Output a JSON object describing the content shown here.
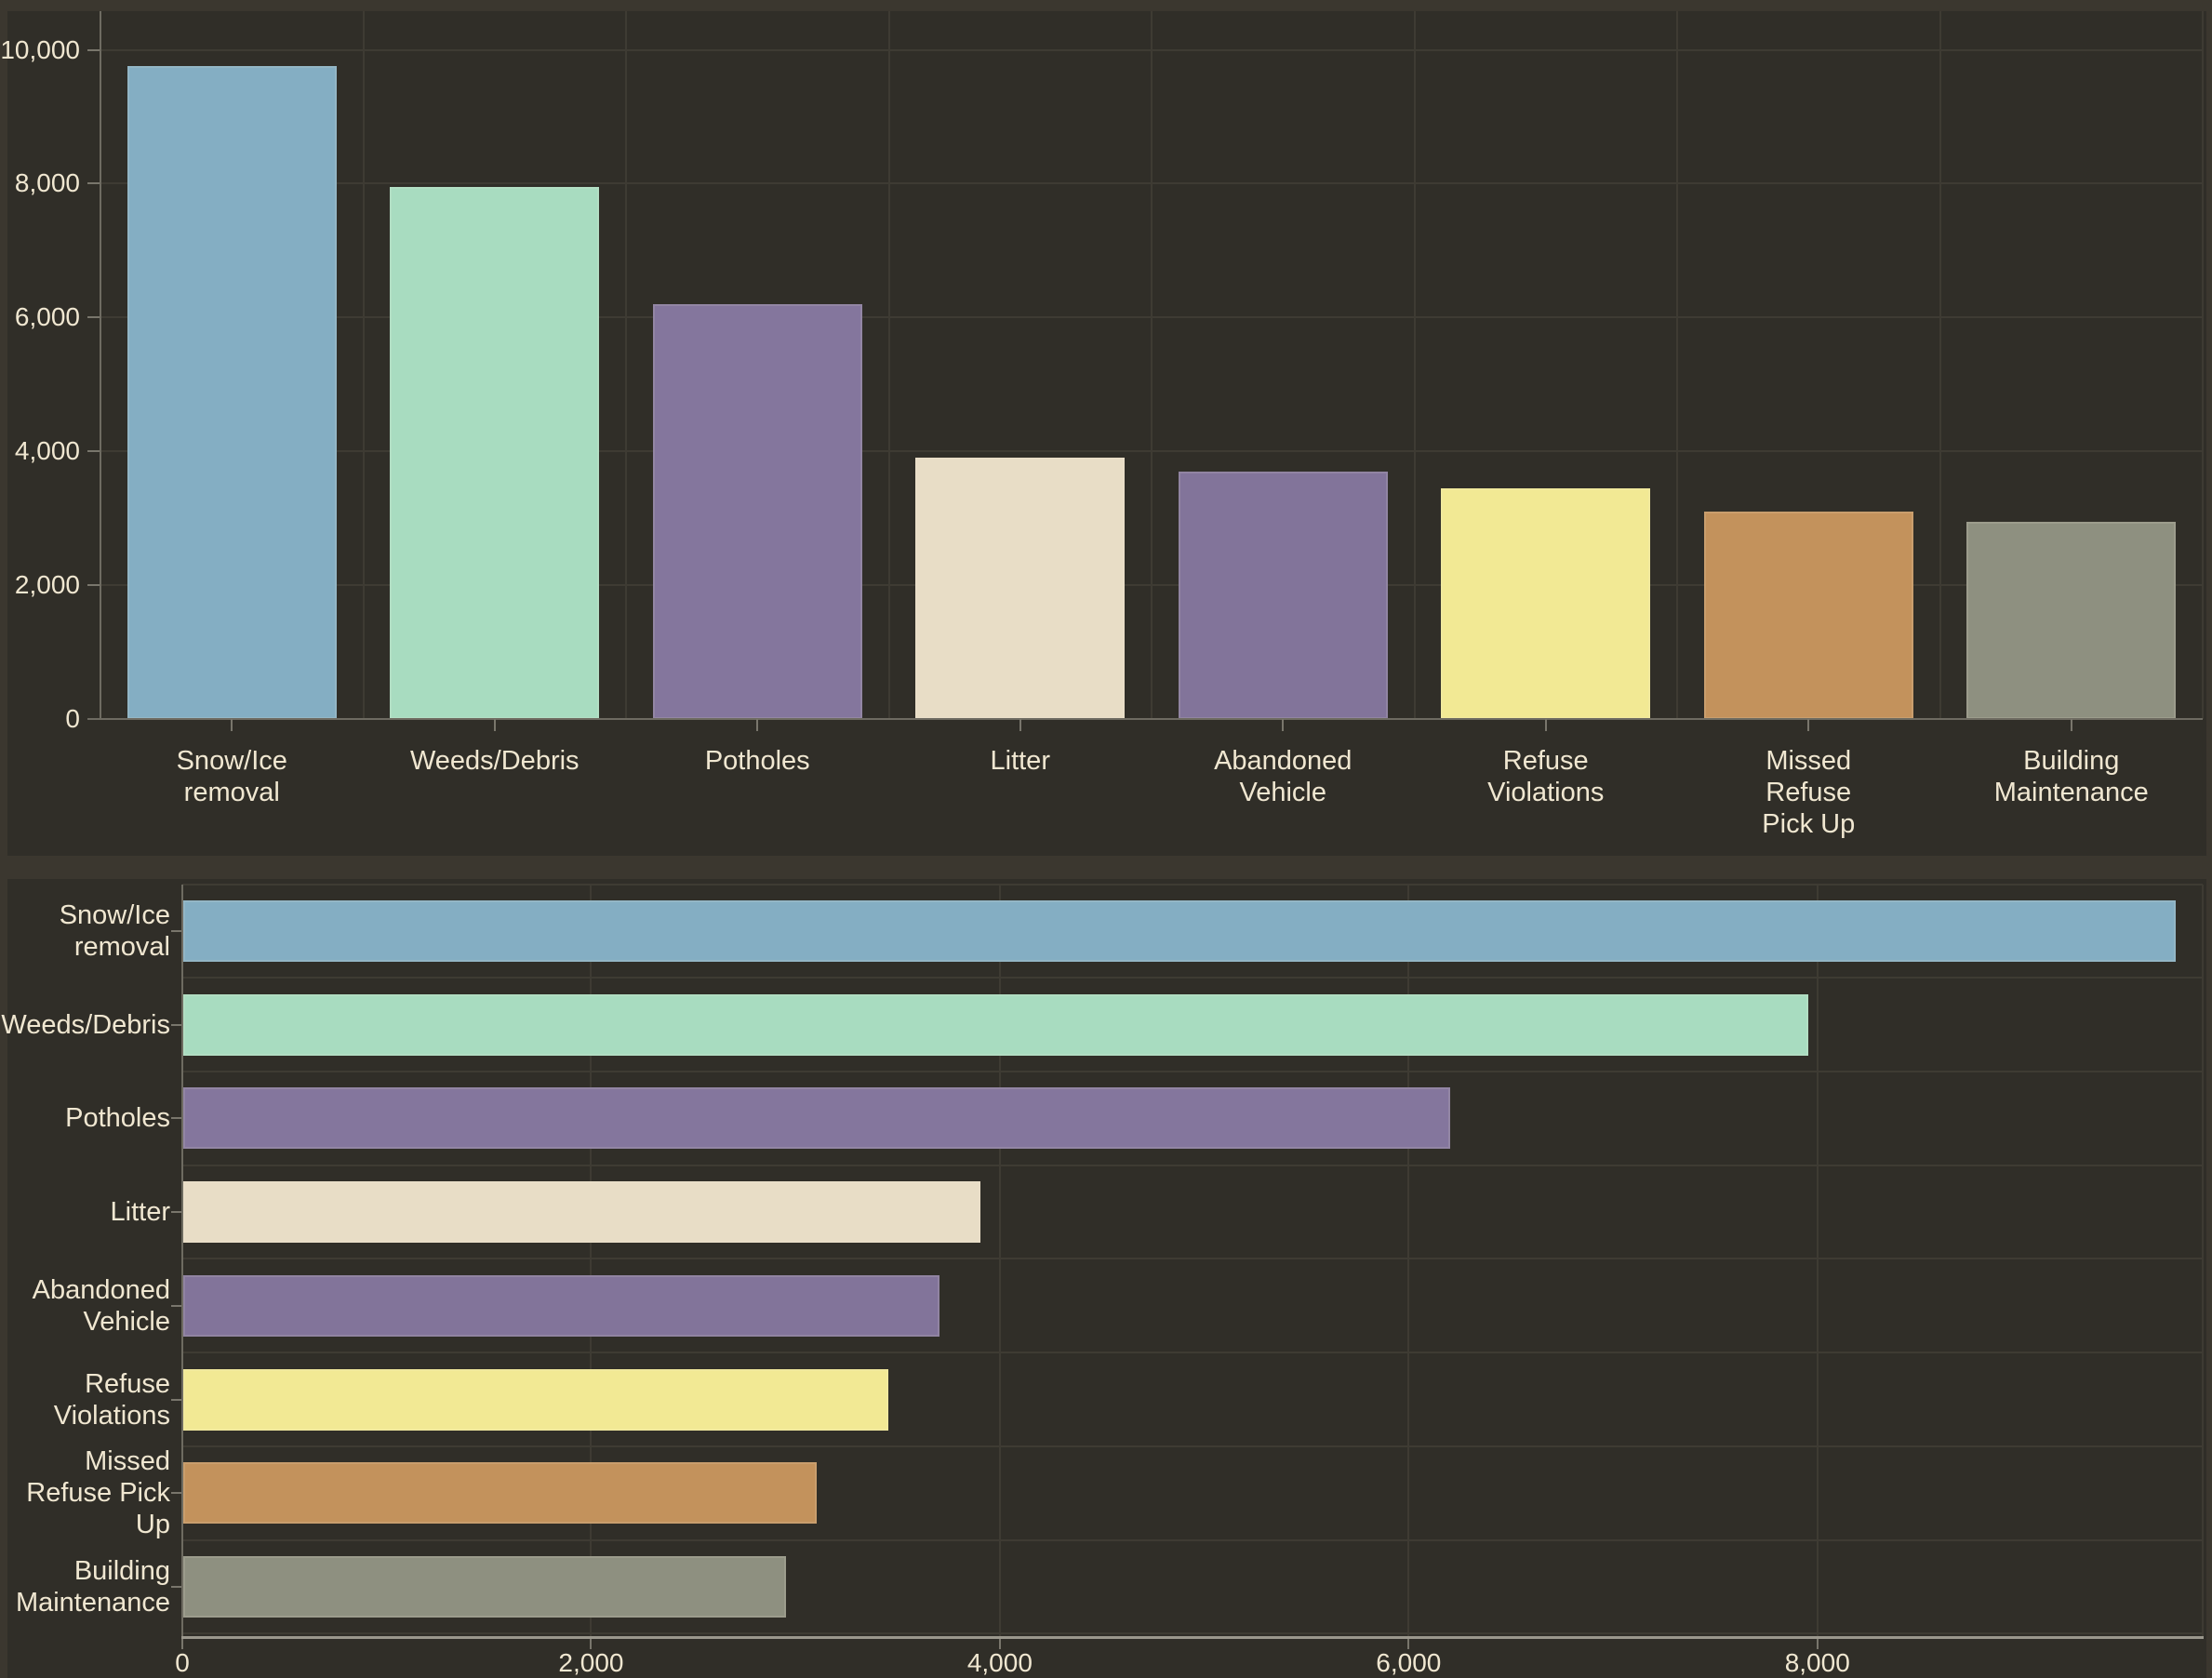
{
  "palette": {
    "page_background": "#3b372f",
    "plot_background": "#302e28",
    "gridline": "#3e3b33",
    "axis_line": "#6e6b61",
    "bottom_axis_line": "#9a978c",
    "label_color": "#f0e7d1"
  },
  "chart_data": [
    {
      "type": "bar",
      "orientation": "vertical",
      "categories": [
        "Snow/Ice removal",
        "Weeds/Debris",
        "Potholes",
        "Litter",
        "Abandoned Vehicle",
        "Refuse Violations",
        "Missed Refuse Pick Up",
        "Building Maintenance"
      ],
      "category_label_lines": [
        [
          "Snow/Ice",
          "removal"
        ],
        [
          "Weeds/Debris"
        ],
        [
          "Potholes"
        ],
        [
          "Litter"
        ],
        [
          "Abandoned",
          "Vehicle"
        ],
        [
          "Refuse",
          "Violations"
        ],
        [
          "Missed",
          "Refuse",
          "Pick Up"
        ],
        [
          "Building",
          "Maintenance"
        ]
      ],
      "values": [
        9750,
        7950,
        6200,
        3900,
        3700,
        3450,
        3100,
        2950
      ],
      "bar_colors": [
        "#84aec3",
        "#a8dcc0",
        "#84769d",
        "#e8ddc6",
        "#82749a",
        "#f2e994",
        "#c3925c",
        "#8e9080"
      ],
      "ylabel": "",
      "xlabel": "",
      "ylim": [
        0,
        10000
      ],
      "y_tick_values": [
        0,
        2000,
        4000,
        6000,
        8000,
        10000
      ],
      "y_tick_labels": [
        "0",
        "2,000",
        "4,000",
        "6,000",
        "8,000",
        "10,000"
      ],
      "grid": true,
      "legend": false
    },
    {
      "type": "bar",
      "orientation": "horizontal",
      "categories": [
        "Snow/Ice removal",
        "Weeds/Debris",
        "Potholes",
        "Litter",
        "Abandoned Vehicle",
        "Refuse Violations",
        "Missed Refuse Pick Up",
        "Building Maintenance"
      ],
      "category_label_lines": [
        [
          "Snow/Ice",
          "removal"
        ],
        [
          "Weeds/Debris"
        ],
        [
          "Potholes"
        ],
        [
          "Litter"
        ],
        [
          "Abandoned",
          "Vehicle"
        ],
        [
          "Refuse",
          "Violations"
        ],
        [
          "Missed",
          "Refuse Pick",
          "Up"
        ],
        [
          "Building",
          "Maintenance"
        ]
      ],
      "values": [
        9750,
        7950,
        6200,
        3900,
        3700,
        3450,
        3100,
        2950
      ],
      "bar_colors": [
        "#84aec3",
        "#a8dcc0",
        "#84769d",
        "#e8ddc6",
        "#82749a",
        "#f2e994",
        "#c3925c",
        "#8e9080"
      ],
      "ylabel": "",
      "xlabel": "",
      "xlim": [
        0,
        9890
      ],
      "x_tick_values": [
        0,
        2000,
        4000,
        6000,
        8000
      ],
      "x_tick_labels": [
        "0",
        "2,000",
        "4,000",
        "6,000",
        "8,000"
      ],
      "grid": true,
      "legend": false
    }
  ]
}
